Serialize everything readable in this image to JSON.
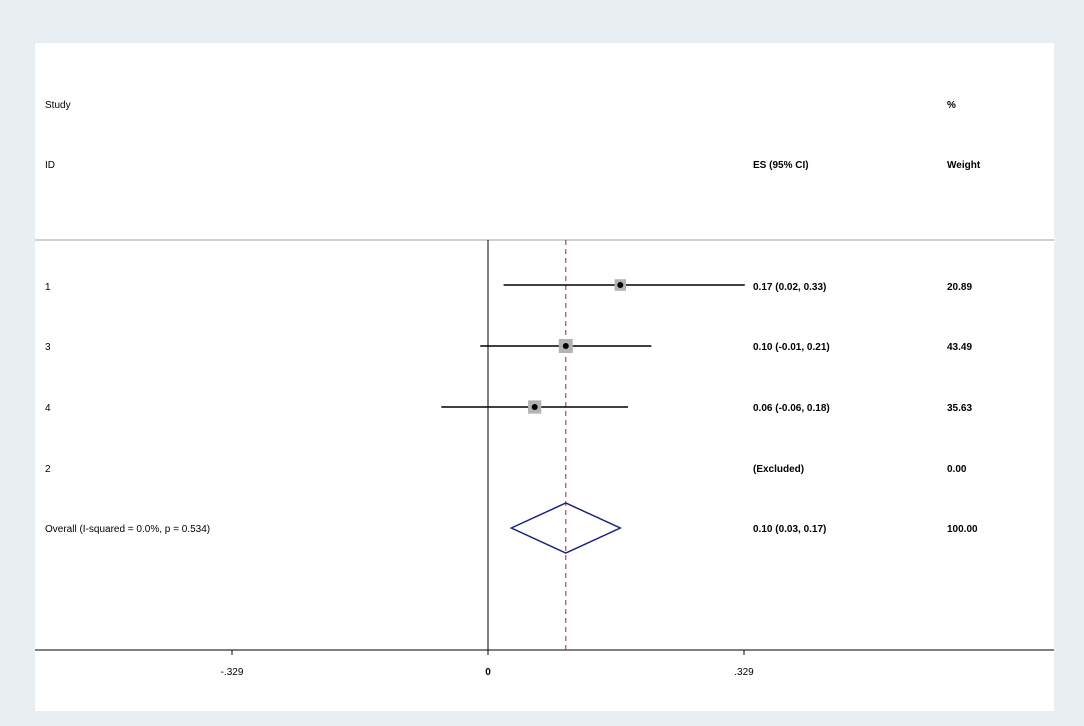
{
  "chart_data": {
    "type": "forest",
    "title": "",
    "header": {
      "col1_line1": "Study",
      "col1_line2": "ID",
      "col2_line2": "ES (95% CI)",
      "col3_line1": "%",
      "col3_line2": "Weight"
    },
    "studies": [
      {
        "id": "1",
        "es": 0.17,
        "lower": 0.02,
        "upper": 0.33,
        "es_text": "0.17 (0.02, 0.33)",
        "weight": 20.89,
        "weight_text": "20.89"
      },
      {
        "id": "3",
        "es": 0.1,
        "lower": -0.01,
        "upper": 0.21,
        "es_text": "0.10 (-0.01, 0.21)",
        "weight": 43.49,
        "weight_text": "43.49"
      },
      {
        "id": "4",
        "es": 0.06,
        "lower": -0.06,
        "upper": 0.18,
        "es_text": "0.06 (-0.06, 0.18)",
        "weight": 35.63,
        "weight_text": "35.63"
      },
      {
        "id": "2",
        "es": null,
        "lower": null,
        "upper": null,
        "es_text": "(Excluded)",
        "weight": 0.0,
        "weight_text": "0.00"
      }
    ],
    "overall": {
      "label": "Overall  (I-squared = 0.0%, p = 0.534)",
      "es": 0.1,
      "lower": 0.03,
      "upper": 0.17,
      "es_text": "0.10 (0.03, 0.17)",
      "weight_text": "100.00"
    },
    "x_axis": {
      "range": [
        -0.329,
        0.329
      ],
      "ticks": [
        -0.329,
        0,
        0.329
      ],
      "tick_labels": [
        "-.329",
        "0",
        ".329"
      ]
    },
    "null_line": 0,
    "colors": {
      "ci_line": "#000000",
      "weight_box": "#b3b3b3",
      "point": "#000000",
      "diamond": "#1a237e",
      "overall_line": "#b22222",
      "background": "#e9eef2",
      "panel": "#ffffff"
    }
  }
}
